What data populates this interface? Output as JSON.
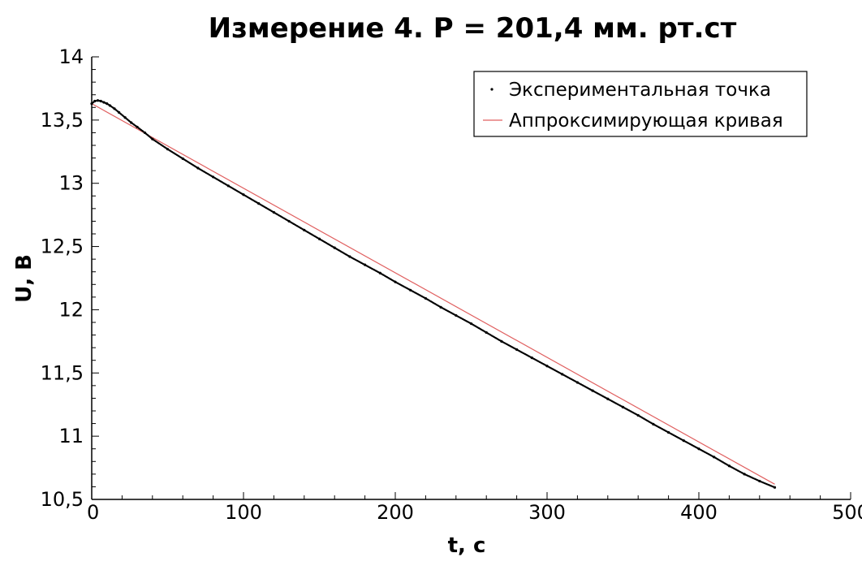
{
  "chart_data": {
    "type": "scatter",
    "title": "Измерение 4. P = 201,4 мм. рт.ст",
    "xlabel": "t, с",
    "ylabel": "U, В",
    "xlim": [
      0,
      500
    ],
    "ylim": [
      10.5,
      14
    ],
    "x_ticks": [
      0,
      100,
      200,
      300,
      400,
      500
    ],
    "x_tick_labels": [
      "0",
      "100",
      "200",
      "300",
      "400",
      "500"
    ],
    "y_ticks": [
      10.5,
      11,
      11.5,
      12,
      12.5,
      13,
      13.5,
      14
    ],
    "y_tick_labels": [
      "10,5",
      "11",
      "11,5",
      "12",
      "12,5",
      "13",
      "13,5",
      "14"
    ],
    "grid": false,
    "legend_position": "top-right",
    "series": [
      {
        "name": "Экспериментальная точка",
        "kind": "points",
        "color": "#000000",
        "x": [
          0,
          2,
          4,
          6,
          8,
          10,
          12,
          15,
          18,
          22,
          26,
          30,
          35,
          40,
          50,
          60,
          70,
          80,
          90,
          100,
          110,
          120,
          130,
          140,
          150,
          160,
          170,
          180,
          190,
          200,
          210,
          220,
          230,
          240,
          250,
          260,
          270,
          280,
          290,
          300,
          310,
          320,
          330,
          340,
          350,
          360,
          370,
          380,
          390,
          400,
          410,
          420,
          430,
          440,
          450
        ],
        "y": [
          13.63,
          13.65,
          13.655,
          13.65,
          13.64,
          13.63,
          13.615,
          13.59,
          13.56,
          13.52,
          13.48,
          13.445,
          13.4,
          13.35,
          13.27,
          13.195,
          13.12,
          13.05,
          12.98,
          12.91,
          12.84,
          12.77,
          12.7,
          12.63,
          12.56,
          12.49,
          12.42,
          12.355,
          12.29,
          12.22,
          12.155,
          12.09,
          12.02,
          11.955,
          11.89,
          11.82,
          11.75,
          11.685,
          11.62,
          11.555,
          11.49,
          11.425,
          11.36,
          11.295,
          11.23,
          11.165,
          11.095,
          11.03,
          10.965,
          10.9,
          10.835,
          10.765,
          10.7,
          10.645,
          10.595
        ]
      },
      {
        "name": "Аппроксимирующая кривая",
        "kind": "line",
        "color": "#e06060",
        "x": [
          0,
          450
        ],
        "y": [
          13.63,
          10.62
        ]
      }
    ]
  }
}
